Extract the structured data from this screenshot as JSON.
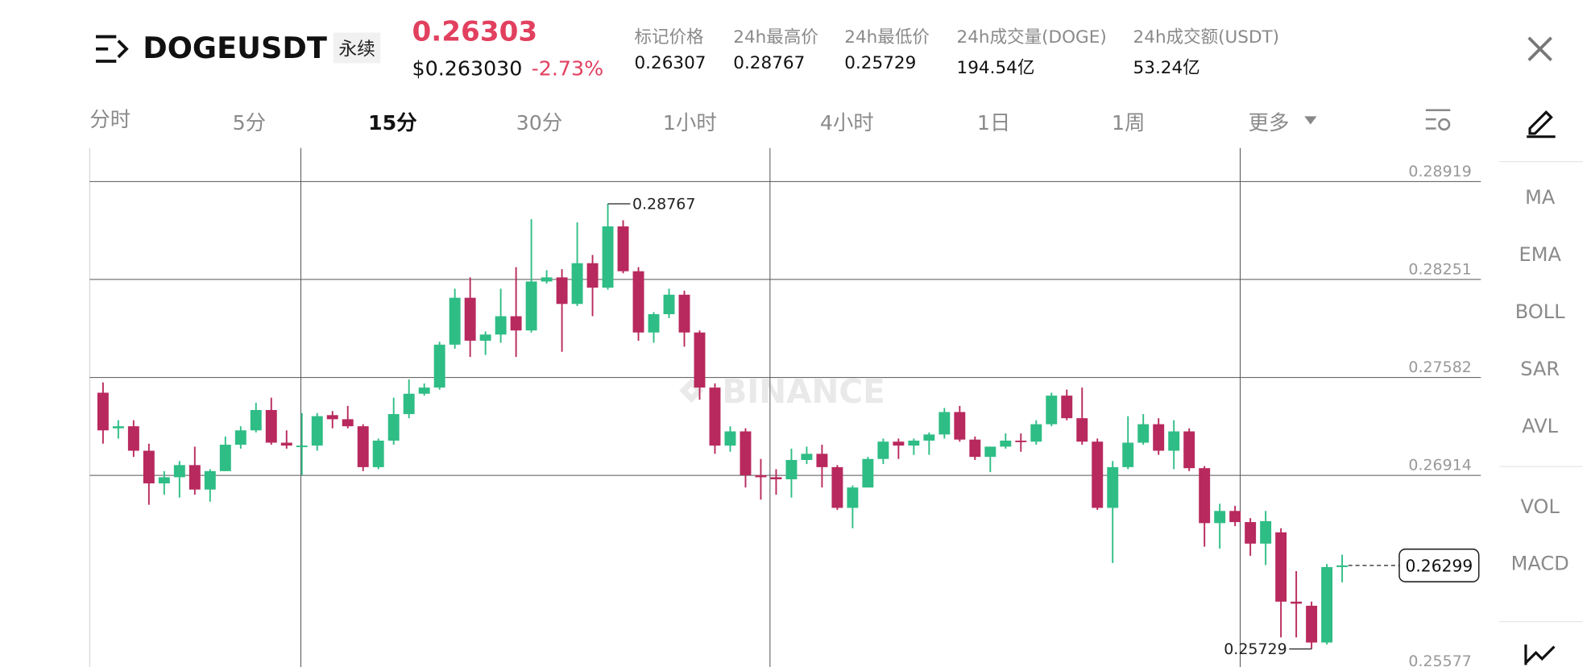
{
  "header": {
    "symbol": "DOGEUSDT",
    "contract_type": "永续",
    "last_price": "0.26303",
    "usd_price": "$0.263030",
    "change": "-2.73%",
    "stats": [
      {
        "label": "标记价格",
        "value": "0.26307"
      },
      {
        "label": "24h最高价",
        "value": "0.28767"
      },
      {
        "label": "24h最低价",
        "value": "0.25729"
      },
      {
        "label": "24h成交量(DOGE)",
        "value": "194.54亿"
      },
      {
        "label": "24h成交额(USDT)",
        "value": "53.24亿"
      }
    ]
  },
  "timeframes": [
    "分时",
    "5分",
    "15分",
    "30分",
    "1小时",
    "4小时",
    "1日",
    "1周",
    "更多"
  ],
  "active_timeframe": "15分",
  "indicators": [
    "MA",
    "EMA",
    "BOLL",
    "SAR",
    "AVL",
    "VOL",
    "MACD"
  ],
  "watermark": "BINANCE",
  "chart_data": {
    "type": "candlestick",
    "up_color": "#2ebd85",
    "down_color": "#b8295d",
    "ylim": [
      0.25606,
      0.29149
    ],
    "yticks": [
      0.28919,
      0.28251,
      0.27582,
      0.26914,
      0.25577
    ],
    "grid": true,
    "high_annotation": {
      "value": 0.28767,
      "label": "0.28767"
    },
    "low_annotation": {
      "value": 0.25729,
      "label": "0.25729"
    },
    "last_price": {
      "value": 0.26299,
      "label": "0.26299"
    },
    "open": [
      0.27478,
      0.27235,
      0.27249,
      0.27082,
      0.26859,
      0.26901,
      0.26984,
      0.26817,
      0.26943,
      0.27123,
      0.27221,
      0.2736,
      0.27137,
      0.27117,
      0.27117,
      0.27325,
      0.27297,
      0.27249,
      0.2697,
      0.27151,
      0.27332,
      0.27471,
      0.27513,
      0.27806,
      0.28126,
      0.27833,
      0.27875,
      0.28,
      0.27903,
      0.28237,
      0.28265,
      0.28084,
      0.28362,
      0.28195,
      0.28613,
      0.28307,
      0.27889,
      0.28014,
      0.28147,
      0.27889,
      0.27513,
      0.27117,
      0.27214,
      0.26915,
      0.26901,
      0.26887,
      0.27019,
      0.27061,
      0.2697,
      0.26692,
      0.26831,
      0.27026,
      0.27144,
      0.27117,
      0.27151,
      0.27193,
      0.27346,
      0.27158,
      0.2704,
      0.2711,
      0.27151,
      0.27144,
      0.27263,
      0.27458,
      0.27304,
      0.27144,
      0.26692,
      0.2697,
      0.27137,
      0.27263,
      0.27082,
      0.27214,
      0.26963,
      0.26588,
      0.26671,
      0.26595,
      0.26448,
      0.26525,
      0.26052,
      0.26024,
      0.25773,
      0.26288
    ],
    "high": [
      0.27548,
      0.2729,
      0.2729,
      0.2713,
      0.26943,
      0.27012,
      0.2711,
      0.26956,
      0.27179,
      0.27249,
      0.27409,
      0.27444,
      0.27221,
      0.27339,
      0.27339,
      0.27353,
      0.27388,
      0.27263,
      0.27165,
      0.27444,
      0.27569,
      0.27541,
      0.27826,
      0.28188,
      0.28265,
      0.27896,
      0.28188,
      0.28335,
      0.28662,
      0.28314,
      0.28321,
      0.28641,
      0.28418,
      0.28767,
      0.28655,
      0.28335,
      0.28028,
      0.28188,
      0.28174,
      0.27903,
      0.27541,
      0.27249,
      0.27235,
      0.27026,
      0.26956,
      0.27096,
      0.2711,
      0.27123,
      0.26984,
      0.26845,
      0.2704,
      0.27165,
      0.27165,
      0.27165,
      0.27207,
      0.27374,
      0.27388,
      0.27179,
      0.2711,
      0.272,
      0.272,
      0.2729,
      0.27478,
      0.27499,
      0.27513,
      0.27165,
      0.27012,
      0.27318,
      0.27332,
      0.27304,
      0.2729,
      0.27235,
      0.26977,
      0.2672,
      0.26706,
      0.26622,
      0.26671,
      0.26553,
      0.2626,
      0.26052,
      0.26309,
      0.26372
    ],
    "low": [
      0.2713,
      0.27165,
      0.2704,
      0.26713,
      0.26782,
      0.26762,
      0.26782,
      0.26734,
      0.26943,
      0.27096,
      0.27207,
      0.27123,
      0.27096,
      0.26915,
      0.27082,
      0.27235,
      0.27235,
      0.26943,
      0.26956,
      0.27123,
      0.27304,
      0.27458,
      0.27499,
      0.27778,
      0.27722,
      0.27736,
      0.27819,
      0.27722,
      0.27889,
      0.28223,
      0.27757,
      0.2807,
      0.28,
      0.28181,
      0.28293,
      0.27833,
      0.27819,
      0.27987,
      0.27792,
      0.2743,
      0.27061,
      0.27075,
      0.26831,
      0.26748,
      0.26782,
      0.26762,
      0.26991,
      0.26831,
      0.26678,
      0.26553,
      0.26831,
      0.26991,
      0.27026,
      0.27054,
      0.27054,
      0.27165,
      0.27144,
      0.27019,
      0.26936,
      0.27096,
      0.27075,
      0.27123,
      0.27249,
      0.2729,
      0.27123,
      0.26678,
      0.26316,
      0.26956,
      0.27123,
      0.27054,
      0.26956,
      0.26943,
      0.26427,
      0.26414,
      0.26567,
      0.26365,
      0.26302,
      0.25808,
      0.25808,
      0.25729,
      0.25759,
      0.26184
    ],
    "close": [
      0.27221,
      0.27249,
      0.27082,
      0.26859,
      0.26901,
      0.26984,
      0.26817,
      0.26943,
      0.27123,
      0.27221,
      0.2736,
      0.27137,
      0.27117,
      0.27117,
      0.27318,
      0.27297,
      0.27249,
      0.2697,
      0.27151,
      0.27332,
      0.27471,
      0.27513,
      0.27806,
      0.28126,
      0.27833,
      0.27875,
      0.28,
      0.27903,
      0.28237,
      0.28265,
      0.28084,
      0.28362,
      0.28195,
      0.28613,
      0.28307,
      0.27889,
      0.28014,
      0.28147,
      0.27889,
      0.27513,
      0.27117,
      0.27214,
      0.26915,
      0.26901,
      0.26887,
      0.27019,
      0.27061,
      0.2697,
      0.26692,
      0.26831,
      0.27026,
      0.27144,
      0.27117,
      0.27151,
      0.27193,
      0.27346,
      0.27158,
      0.2704,
      0.2711,
      0.27151,
      0.27144,
      0.27263,
      0.27458,
      0.27304,
      0.27144,
      0.26692,
      0.2697,
      0.27137,
      0.27263,
      0.27082,
      0.27214,
      0.26963,
      0.26588,
      0.26671,
      0.26595,
      0.26448,
      0.26601,
      0.26052,
      0.26038,
      0.25773,
      0.26288,
      0.26299
    ]
  }
}
